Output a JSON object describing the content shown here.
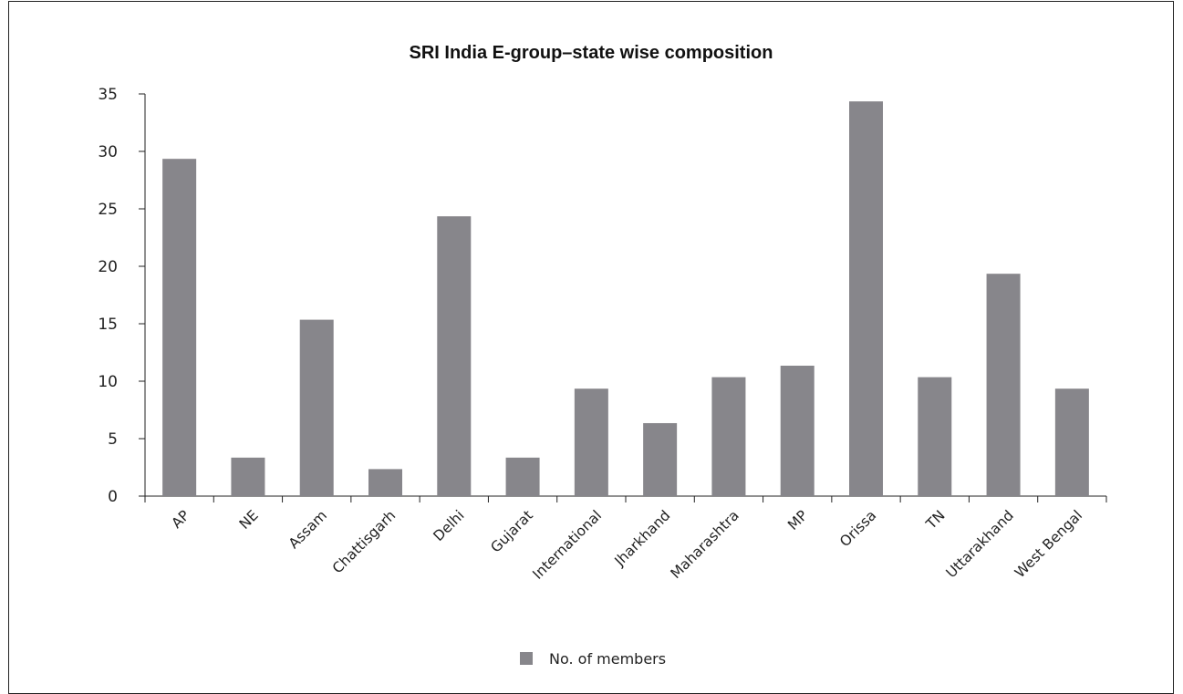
{
  "chart_data": {
    "type": "bar",
    "title": "SRI India E-group–state wise composition",
    "categories": [
      "AP",
      "NE",
      "Assam",
      "Chattisgarh",
      "Delhi",
      "Gujarat",
      "International",
      "Jharkhand",
      "Maharashtra",
      "MP",
      "Orissa",
      "TN",
      "Uttarakhand",
      "West Bengal"
    ],
    "series": [
      {
        "name": "No. of members",
        "values": [
          29,
          3,
          15,
          2,
          24,
          3,
          9,
          6,
          10,
          11,
          34,
          10,
          19,
          9
        ]
      }
    ],
    "ylim": [
      0,
      35
    ],
    "yticks": [
      "0",
      "5",
      "10",
      "15",
      "20",
      "25",
      "30",
      "35"
    ],
    "grid": false,
    "legend_position": "bottom",
    "bar_color": "#87868b"
  }
}
